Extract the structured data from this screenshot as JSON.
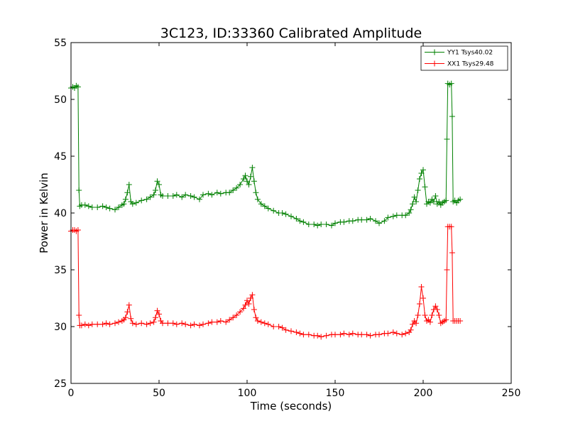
{
  "chart_data": {
    "type": "line",
    "title": "3C123, ID:33360 Calibrated Amplitude",
    "xlabel": "Time (seconds)",
    "ylabel": "Power in Kelvin",
    "xlim": [
      0,
      250
    ],
    "ylim": [
      25,
      55
    ],
    "xticks": [
      0,
      50,
      100,
      150,
      200,
      250
    ],
    "yticks": [
      25,
      30,
      35,
      40,
      45,
      50,
      55
    ],
    "grid": false,
    "legend_position": "top-right",
    "marker": "+",
    "series": [
      {
        "name": "YY1 Tsys40.02",
        "color": "#008000",
        "x": [
          0,
          1,
          2,
          3,
          4,
          4.5,
          5,
          6,
          8,
          10,
          12,
          15,
          18,
          20,
          22,
          25,
          27,
          29,
          30,
          31,
          32,
          33,
          34,
          35,
          37,
          40,
          43,
          45,
          47,
          48,
          49,
          50,
          51,
          52,
          55,
          58,
          60,
          63,
          65,
          68,
          70,
          73,
          75,
          78,
          80,
          83,
          85,
          88,
          90,
          92,
          94,
          96,
          98,
          99,
          100,
          101,
          102,
          103,
          104,
          105,
          106,
          108,
          110,
          112,
          115,
          118,
          120,
          122,
          125,
          128,
          130,
          132,
          135,
          138,
          140,
          142,
          145,
          148,
          150,
          153,
          155,
          158,
          160,
          163,
          165,
          168,
          170,
          173,
          175,
          178,
          180,
          183,
          185,
          188,
          190,
          192,
          193,
          194,
          195,
          196,
          197,
          198,
          199,
          200,
          201,
          202,
          203,
          204,
          205,
          206,
          207,
          208,
          209,
          210,
          211,
          212,
          213,
          213.5,
          214,
          215,
          216,
          216.5,
          217,
          218,
          219,
          220,
          221
        ],
        "values": [
          51.0,
          51.1,
          51.0,
          51.2,
          51.1,
          42.0,
          40.6,
          40.7,
          40.7,
          40.6,
          40.5,
          40.5,
          40.6,
          40.5,
          40.4,
          40.3,
          40.5,
          40.7,
          40.8,
          41.2,
          41.8,
          42.5,
          41.0,
          40.8,
          40.9,
          41.1,
          41.2,
          41.4,
          41.6,
          42.0,
          42.8,
          42.5,
          41.6,
          41.5,
          41.5,
          41.5,
          41.6,
          41.4,
          41.6,
          41.5,
          41.4,
          41.2,
          41.6,
          41.7,
          41.6,
          41.8,
          41.7,
          41.8,
          41.8,
          42.0,
          42.2,
          42.5,
          43.0,
          43.3,
          42.8,
          42.5,
          43.2,
          44.0,
          42.8,
          41.8,
          41.2,
          40.8,
          40.6,
          40.4,
          40.2,
          40.0,
          40.0,
          39.9,
          39.7,
          39.5,
          39.3,
          39.2,
          39.0,
          39.0,
          38.9,
          39.0,
          39.0,
          38.9,
          39.1,
          39.2,
          39.2,
          39.3,
          39.3,
          39.4,
          39.4,
          39.4,
          39.5,
          39.3,
          39.1,
          39.3,
          39.6,
          39.7,
          39.8,
          39.8,
          39.8,
          40.0,
          40.3,
          40.8,
          41.4,
          41.0,
          42.0,
          43.0,
          43.5,
          43.8,
          42.3,
          40.8,
          41.0,
          40.9,
          41.2,
          41.0,
          41.5,
          40.8,
          41.0,
          40.7,
          40.9,
          41.0,
          41.1,
          46.5,
          51.4,
          51.3,
          51.4,
          48.5,
          41.0,
          41.1,
          40.9,
          41.1,
          41.2
        ]
      },
      {
        "name": "XX1 Tsys29.48",
        "color": "#ff0000",
        "x": [
          0,
          1,
          2,
          3,
          4,
          4.5,
          5,
          6,
          8,
          10,
          12,
          15,
          18,
          20,
          22,
          25,
          27,
          29,
          30,
          31,
          32,
          33,
          34,
          35,
          37,
          40,
          43,
          45,
          47,
          48,
          49,
          50,
          51,
          52,
          55,
          58,
          60,
          63,
          65,
          68,
          70,
          73,
          75,
          78,
          80,
          83,
          85,
          88,
          90,
          92,
          94,
          96,
          98,
          99,
          100,
          101,
          102,
          103,
          104,
          105,
          106,
          108,
          110,
          112,
          115,
          118,
          120,
          122,
          125,
          128,
          130,
          132,
          135,
          138,
          140,
          142,
          145,
          148,
          150,
          153,
          155,
          158,
          160,
          163,
          165,
          168,
          170,
          173,
          175,
          178,
          180,
          183,
          185,
          188,
          190,
          192,
          193,
          194,
          195,
          196,
          197,
          198,
          199,
          200,
          201,
          202,
          203,
          204,
          205,
          206,
          207,
          208,
          209,
          210,
          211,
          212,
          213,
          213.5,
          214,
          215,
          216,
          216.5,
          217,
          218,
          219,
          220,
          221
        ],
        "values": [
          38.4,
          38.5,
          38.5,
          38.4,
          38.5,
          31.0,
          30.1,
          30.1,
          30.2,
          30.1,
          30.2,
          30.2,
          30.2,
          30.3,
          30.2,
          30.3,
          30.4,
          30.5,
          30.6,
          30.8,
          31.3,
          31.9,
          30.7,
          30.3,
          30.2,
          30.3,
          30.2,
          30.3,
          30.4,
          30.8,
          31.4,
          31.1,
          30.5,
          30.3,
          30.3,
          30.3,
          30.2,
          30.3,
          30.2,
          30.1,
          30.2,
          30.1,
          30.2,
          30.3,
          30.4,
          30.4,
          30.5,
          30.4,
          30.6,
          30.8,
          31.0,
          31.3,
          31.6,
          31.9,
          32.3,
          32.0,
          32.5,
          32.8,
          31.5,
          30.8,
          30.5,
          30.4,
          30.3,
          30.2,
          30.0,
          30.0,
          29.9,
          29.7,
          29.6,
          29.5,
          29.4,
          29.3,
          29.3,
          29.2,
          29.2,
          29.1,
          29.2,
          29.3,
          29.3,
          29.3,
          29.4,
          29.3,
          29.4,
          29.3,
          29.3,
          29.3,
          29.2,
          29.3,
          29.3,
          29.4,
          29.4,
          29.5,
          29.4,
          29.3,
          29.4,
          29.5,
          29.7,
          30.2,
          30.5,
          30.3,
          31.0,
          32.0,
          33.5,
          32.5,
          31.0,
          30.5,
          30.6,
          30.4,
          31.0,
          31.5,
          31.8,
          31.5,
          31.0,
          30.3,
          30.4,
          30.5,
          30.6,
          35.0,
          38.8,
          38.8,
          38.8,
          36.5,
          30.5,
          30.5,
          30.5,
          30.5,
          30.5
        ]
      }
    ]
  }
}
